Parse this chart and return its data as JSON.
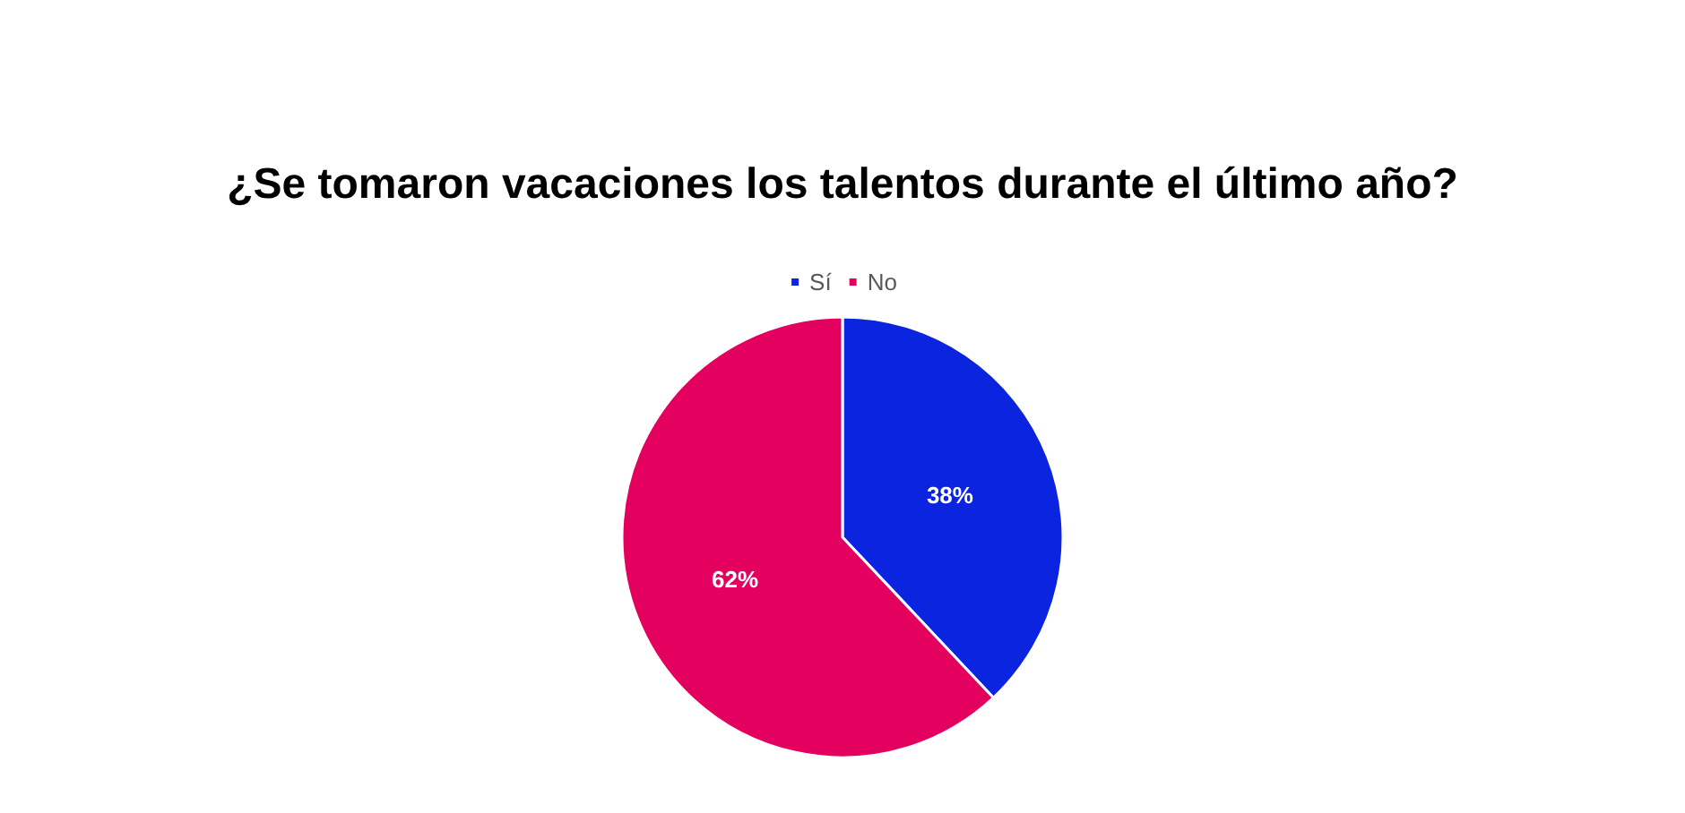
{
  "chart_data": {
    "type": "pie",
    "title": "¿Se tomaron vacaciones los talentos durante el último año?",
    "categories": [
      "Sí",
      "No"
    ],
    "values": [
      38,
      62
    ],
    "colors": [
      "#0a24e0",
      "#e3005f"
    ],
    "value_labels": [
      "38%",
      "62%"
    ],
    "legend": "top"
  }
}
